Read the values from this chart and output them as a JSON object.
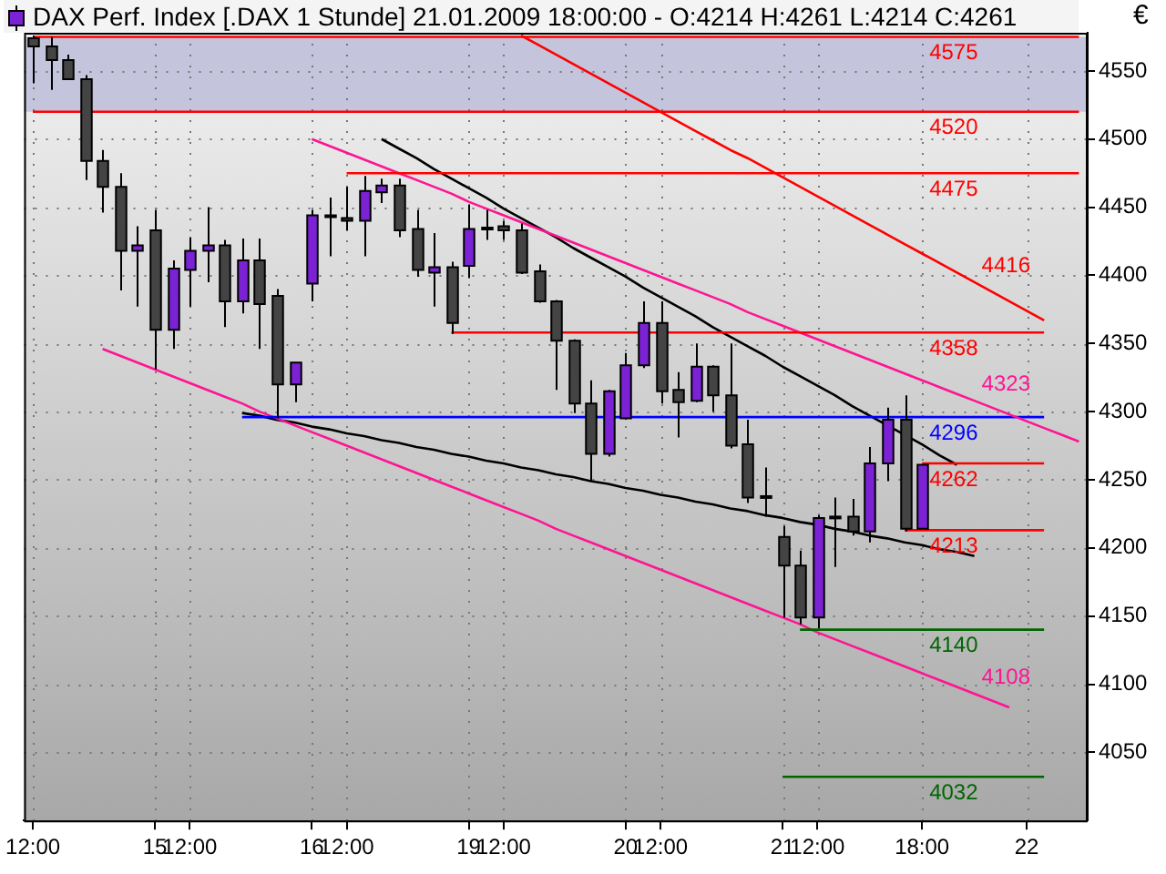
{
  "chart_data": {
    "type": "candlestick",
    "title": "DAX Perf. Index [.DAX  1 Stunde] 21.01.2009 18:00:00 -",
    "subtitle": "O:4214 H:4261 L:4214 C:4261",
    "ylabel": "€",
    "categories": [
      "12:00",
      null,
      null,
      null,
      null,
      null,
      null,
      "15",
      null,
      "12:00",
      null,
      null,
      null,
      null,
      null,
      null,
      "16",
      null,
      "12:00",
      null,
      null,
      null,
      null,
      null,
      null,
      "19",
      null,
      "12:00",
      null,
      null,
      null,
      null,
      null,
      null,
      "20",
      null,
      "12:00",
      null,
      null,
      null,
      null,
      null,
      null,
      "21",
      null,
      "12:00",
      null,
      null,
      null,
      null,
      null,
      "18:00",
      null,
      null,
      null,
      null,
      null,
      "22",
      null,
      null,
      null
    ],
    "ohlc": [
      [
        4574,
        4576,
        4541,
        4568
      ],
      [
        4568,
        4575,
        4536,
        4558
      ],
      [
        4558,
        4562,
        4544,
        4544
      ],
      [
        4544,
        4547,
        4470,
        4484
      ],
      [
        4484,
        4492,
        4446,
        4465
      ],
      [
        4465,
        4475,
        4389,
        4418
      ],
      [
        4418,
        4436,
        4377,
        4422
      ],
      [
        4433,
        4448,
        4331,
        4360
      ],
      [
        4360,
        4411,
        4346,
        4405
      ],
      [
        4404,
        4428,
        4377,
        4418
      ],
      [
        4418,
        4450,
        4395,
        4422
      ],
      [
        4422,
        4426,
        4362,
        4381
      ],
      [
        4381,
        4427,
        4372,
        4411
      ],
      [
        4411,
        4427,
        4346,
        4379
      ],
      [
        4385,
        4390,
        4295,
        4320
      ],
      [
        4320,
        4336,
        4307,
        4336
      ],
      [
        4394,
        4448,
        4381,
        4444
      ],
      [
        4444,
        4457,
        4414,
        4443
      ],
      [
        4442,
        4465,
        4433,
        4440
      ],
      [
        4440,
        4473,
        4414,
        4462
      ],
      [
        4461,
        4471,
        4453,
        4466
      ],
      [
        4466,
        4471,
        4428,
        4433
      ],
      [
        4434,
        4448,
        4399,
        4404
      ],
      [
        4402,
        4431,
        4377,
        4406
      ],
      [
        4406,
        4410,
        4357,
        4365
      ],
      [
        4407,
        4452,
        4398,
        4434
      ],
      [
        4435,
        4448,
        4426,
        4434
      ],
      [
        4436,
        4440,
        4426,
        4433
      ],
      [
        4433,
        4438,
        4401,
        4402
      ],
      [
        4403,
        4408,
        4380,
        4381
      ],
      [
        4381,
        4382,
        4316,
        4352
      ],
      [
        4352,
        4353,
        4299,
        4306
      ],
      [
        4306,
        4323,
        4249,
        4269
      ],
      [
        4269,
        4316,
        4267,
        4315
      ],
      [
        4295,
        4343,
        4294,
        4334
      ],
      [
        4334,
        4381,
        4332,
        4365
      ],
      [
        4365,
        4381,
        4306,
        4315
      ],
      [
        4316,
        4329,
        4281,
        4307
      ],
      [
        4308,
        4350,
        4307,
        4333
      ],
      [
        4333,
        4334,
        4300,
        4312
      ],
      [
        4312,
        4350,
        4273,
        4275
      ],
      [
        4276,
        4294,
        4233,
        4237
      ],
      [
        4238,
        4259,
        4223,
        4237
      ],
      [
        4208,
        4216,
        4149,
        4187
      ],
      [
        4187,
        4198,
        4144,
        4149
      ],
      [
        4149,
        4224,
        4141,
        4222
      ],
      [
        4223,
        4237,
        4186,
        4222
      ],
      [
        4223,
        4236,
        4209,
        4212
      ],
      [
        4212,
        4274,
        4204,
        4262
      ],
      [
        4262,
        4303,
        4249,
        4294
      ],
      [
        4294,
        4312,
        4212,
        4214
      ],
      [
        4214,
        4261,
        4214,
        4261
      ],
      null,
      null,
      null,
      null,
      null,
      null,
      null,
      null,
      null
    ],
    "colors": [
      "#444444",
      "#444444",
      "#444444",
      "#444444",
      "#444444",
      "#444444",
      "#7b22d4",
      "#444444",
      "#7b22d4",
      "#7b22d4",
      "#7b22d4",
      "#444444",
      "#7b22d4",
      "#444444",
      "#444444",
      "#7b22d4",
      "#7b22d4",
      "#444444",
      "#444444",
      "#7b22d4",
      "#7b22d4",
      "#444444",
      "#444444",
      "#7b22d4",
      "#444444",
      "#7b22d4",
      "#444444",
      "#444444",
      "#444444",
      "#444444",
      "#444444",
      "#444444",
      "#444444",
      "#7b22d4",
      "#7b22d4",
      "#7b22d4",
      "#444444",
      "#444444",
      "#7b22d4",
      "#444444",
      "#444444",
      "#444444",
      "#444444",
      "#444444",
      "#444444",
      "#7b22d4",
      "#444444",
      "#444444",
      "#7b22d4",
      "#7b22d4",
      "#444444",
      "#7b22d4",
      null,
      null,
      null,
      null,
      null,
      null,
      null,
      null,
      null
    ],
    "series": [
      {
        "type": "line",
        "name": "4575",
        "color": "#ff0000",
        "values": [
          4575,
          4575,
          4575,
          4575,
          4575,
          4575,
          4575,
          4575,
          4575,
          4575,
          4575,
          4575,
          4575,
          4575,
          4575,
          4575,
          4575,
          4575,
          4575,
          4575,
          4575,
          4575,
          4575,
          4575,
          4575,
          4575,
          4575,
          4575,
          4575,
          4575,
          4575,
          4575,
          4575,
          4575,
          4575,
          4575,
          4575,
          4575,
          4575,
          4575,
          4575,
          4575,
          4575,
          4575,
          4575,
          4575,
          4575,
          4575,
          4575,
          4575,
          4575,
          4575,
          4575,
          4575,
          4575,
          4575,
          4575,
          4575,
          4575,
          4575,
          4575
        ]
      },
      {
        "type": "line",
        "name": "4520",
        "color": "#ff0000",
        "values": [
          4520,
          4520,
          4520,
          4520,
          4520,
          4520,
          4520,
          4520,
          4520,
          4520,
          4520,
          4520,
          4520,
          4520,
          4520,
          4520,
          4520,
          4520,
          4520,
          4520,
          4520,
          4520,
          4520,
          4520,
          4520,
          4520,
          4520,
          4520,
          4520,
          4520,
          4520,
          4520,
          4520,
          4520,
          4520,
          4520,
          4520,
          4520,
          4520,
          4520,
          4520,
          4520,
          4520,
          4520,
          4520,
          4520,
          4520,
          4520,
          4520,
          4520,
          4520,
          4520,
          4520,
          4520,
          4520,
          4520,
          4520,
          4520,
          4520,
          4520,
          4520
        ]
      },
      {
        "type": "line",
        "name": "4475",
        "color": "#ff0000",
        "values": [
          null,
          null,
          null,
          null,
          null,
          null,
          null,
          null,
          null,
          null,
          null,
          null,
          null,
          null,
          null,
          null,
          null,
          null,
          4475,
          4475,
          4475,
          4475,
          4475,
          4475,
          4475,
          4475,
          4475,
          4475,
          4475,
          4475,
          4475,
          4475,
          4475,
          4475,
          4475,
          4475,
          4475,
          4475,
          4475,
          4475,
          4475,
          4475,
          4475,
          4475,
          4475,
          4475,
          4475,
          4475,
          4475,
          4475,
          4475,
          4475,
          4475,
          4475,
          4475,
          4475,
          4475,
          4475,
          4475,
          4475,
          4475
        ]
      },
      {
        "type": "line",
        "name": "4416",
        "color": "#ff0000",
        "values": [
          null,
          null,
          null,
          null,
          null,
          null,
          null,
          null,
          null,
          null,
          null,
          null,
          null,
          null,
          null,
          null,
          null,
          null,
          null,
          null,
          null,
          null,
          null,
          null,
          null,
          null,
          null,
          null,
          4576,
          4569,
          4562,
          4555,
          4548,
          4541,
          4534,
          4527,
          4520,
          4513,
          4506,
          4499,
          4492,
          4486,
          4479,
          4472,
          4465,
          4458,
          4451,
          4444,
          4437,
          4430,
          4423,
          4416,
          4409,
          4402,
          4395,
          4388,
          4381,
          4374,
          4367,
          null,
          null
        ]
      },
      {
        "type": "line",
        "name": "4358",
        "color": "#ff0000",
        "values": [
          null,
          null,
          null,
          null,
          null,
          null,
          null,
          null,
          null,
          null,
          null,
          null,
          null,
          null,
          null,
          null,
          null,
          null,
          null,
          null,
          null,
          null,
          null,
          null,
          4358,
          4358,
          4358,
          4358,
          4358,
          4358,
          4358,
          4358,
          4358,
          4358,
          4358,
          4358,
          4358,
          4358,
          4358,
          4358,
          4358,
          4358,
          4358,
          4358,
          4358,
          4358,
          4358,
          4358,
          4358,
          4358,
          4358,
          4358,
          4358,
          4358,
          4358,
          4358,
          4358,
          4358,
          4358,
          null,
          null
        ]
      },
      {
        "type": "line",
        "name": "4323",
        "color": "#ff1493",
        "values": [
          null,
          null,
          null,
          null,
          null,
          null,
          null,
          null,
          null,
          null,
          null,
          null,
          null,
          null,
          null,
          null,
          4500,
          4495,
          4490,
          4485,
          4480,
          4475,
          4470,
          4465,
          4460,
          4454,
          4449,
          4444,
          4439,
          4434,
          4429,
          4424,
          4419,
          4414,
          4409,
          4404,
          4399,
          4394,
          4389,
          4384,
          4379,
          4373,
          4368,
          4363,
          4358,
          4353,
          4348,
          4343,
          4338,
          4333,
          4328,
          4323,
          4318,
          4313,
          4308,
          4303,
          4298,
          4293,
          4288,
          4283,
          4278
        ]
      },
      {
        "type": "line",
        "name": "4296",
        "color": "#0000ff",
        "values": [
          null,
          null,
          null,
          null,
          null,
          null,
          null,
          null,
          null,
          null,
          null,
          null,
          4296,
          4296,
          4296,
          4296,
          4296,
          4296,
          4296,
          4296,
          4296,
          4296,
          4296,
          4296,
          4296,
          4296,
          4296,
          4296,
          4296,
          4296,
          4296,
          4296,
          4296,
          4296,
          4296,
          4296,
          4296,
          4296,
          4296,
          4296,
          4296,
          4296,
          4296,
          4296,
          4296,
          4296,
          4296,
          4296,
          4296,
          4296,
          4296,
          4296,
          4296,
          4296,
          4296,
          4296,
          4296,
          4296,
          4296,
          null,
          null
        ]
      },
      {
        "type": "line",
        "name": "4262",
        "color": "#ff0000",
        "values": [
          null,
          null,
          null,
          null,
          null,
          null,
          null,
          null,
          null,
          null,
          null,
          null,
          null,
          null,
          null,
          null,
          null,
          null,
          null,
          null,
          null,
          null,
          null,
          null,
          null,
          null,
          null,
          null,
          null,
          null,
          null,
          null,
          null,
          null,
          null,
          null,
          null,
          null,
          null,
          null,
          null,
          null,
          null,
          null,
          null,
          null,
          null,
          null,
          null,
          null,
          null,
          4262,
          4262,
          4262,
          4262,
          4262,
          4262,
          4262,
          4262,
          null,
          null
        ]
      },
      {
        "type": "line",
        "name": "4213",
        "color": "#ff0000",
        "values": [
          null,
          null,
          null,
          null,
          null,
          null,
          null,
          null,
          null,
          null,
          null,
          null,
          null,
          null,
          null,
          null,
          null,
          null,
          null,
          null,
          null,
          null,
          null,
          null,
          null,
          null,
          null,
          null,
          null,
          null,
          null,
          null,
          null,
          null,
          null,
          null,
          null,
          null,
          null,
          null,
          null,
          null,
          null,
          null,
          null,
          null,
          null,
          null,
          null,
          null,
          4213,
          4213,
          4213,
          4213,
          4213,
          4213,
          4213,
          4213,
          4213,
          null,
          null
        ]
      },
      {
        "type": "line",
        "name": "4140",
        "color": "#006400",
        "values": [
          null,
          null,
          null,
          null,
          null,
          null,
          null,
          null,
          null,
          null,
          null,
          null,
          null,
          null,
          null,
          null,
          null,
          null,
          null,
          null,
          null,
          null,
          null,
          null,
          null,
          null,
          null,
          null,
          null,
          null,
          null,
          null,
          null,
          null,
          null,
          null,
          null,
          null,
          null,
          null,
          null,
          null,
          null,
          null,
          4140,
          4140,
          4140,
          4140,
          4140,
          4140,
          4140,
          4140,
          4140,
          4140,
          4140,
          4140,
          4140,
          4140,
          4140,
          null,
          null
        ]
      },
      {
        "type": "line",
        "name": "4108",
        "color": "#ff1493",
        "values": [
          null,
          null,
          null,
          null,
          4346,
          4341,
          4336,
          4331,
          4326,
          4321,
          4316,
          4311,
          4306,
          4300,
          4295,
          4290,
          4285,
          4280,
          4275,
          4270,
          4265,
          4260,
          4255,
          4250,
          4245,
          4240,
          4235,
          4230,
          4225,
          4220,
          4214,
          4209,
          4204,
          4199,
          4194,
          4189,
          4184,
          4179,
          4174,
          4169,
          4164,
          4159,
          4154,
          4149,
          4144,
          4138,
          4133,
          4128,
          4123,
          4118,
          4113,
          4108,
          4103,
          4098,
          4093,
          4088,
          4083,
          null,
          null,
          null,
          null
        ]
      },
      {
        "type": "line",
        "name": "4032",
        "color": "#006400",
        "values": [
          null,
          null,
          null,
          null,
          null,
          null,
          null,
          null,
          null,
          null,
          null,
          null,
          null,
          null,
          null,
          null,
          null,
          null,
          null,
          null,
          null,
          null,
          null,
          null,
          null,
          null,
          null,
          null,
          null,
          null,
          null,
          null,
          null,
          null,
          null,
          null,
          null,
          null,
          null,
          null,
          null,
          null,
          null,
          4032,
          4032,
          4032,
          4032,
          4032,
          4032,
          4032,
          4032,
          4032,
          4032,
          4032,
          4032,
          4032,
          4032,
          4032,
          4032,
          null,
          null
        ]
      },
      {
        "type": "line",
        "color": "#000000",
        "values": [
          null,
          null,
          null,
          null,
          null,
          null,
          null,
          null,
          null,
          null,
          null,
          null,
          null,
          null,
          null,
          null,
          null,
          null,
          null,
          null,
          4500,
          4493,
          4486,
          4478,
          4471,
          4464,
          4457,
          4449,
          4442,
          4435,
          4428,
          4420,
          4413,
          4406,
          4399,
          4391,
          4384,
          4377,
          4370,
          4362,
          4355,
          4348,
          4341,
          4333,
          4326,
          4319,
          4312,
          4304,
          4297,
          4290,
          4283,
          4276,
          4268,
          4261,
          null,
          null,
          null,
          null,
          null,
          null,
          null
        ]
      },
      {
        "type": "line",
        "color": "#000000",
        "values": [
          null,
          null,
          null,
          null,
          null,
          null,
          null,
          null,
          null,
          null,
          null,
          null,
          4299,
          4297,
          4294,
          4292,
          4289,
          4287,
          4284,
          4282,
          4279,
          4277,
          4274,
          4272,
          4269,
          4267,
          4264,
          4262,
          4259,
          4257,
          4254,
          4252,
          4249,
          4247,
          4244,
          4242,
          4239,
          4237,
          4234,
          4232,
          4229,
          4227,
          4224,
          4222,
          4219,
          4217,
          4214,
          4212,
          4209,
          4207,
          4204,
          4202,
          4199,
          4197,
          4194,
          null,
          null,
          null,
          null,
          null,
          null
        ]
      }
    ],
    "bands": [
      {
        "axis": "y",
        "from": 4520,
        "to": 4575,
        "color": "#c4c4dc"
      }
    ],
    "ylim": [
      4000,
      4578
    ],
    "yticks": [
      4050,
      4100,
      4150,
      4200,
      4250,
      4300,
      4350,
      4400,
      4450,
      4500,
      4550
    ],
    "grid": true,
    "legend": false,
    "marker": "none",
    "line_style": "solid"
  }
}
